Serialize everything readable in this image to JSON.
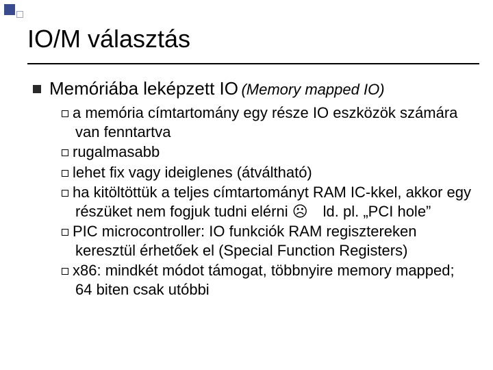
{
  "decor": {
    "big_color": "#3a4a8f",
    "small_border": "#9aa0c0",
    "rule_color": "#000000"
  },
  "title": "IO/M választás",
  "bullet1_color": "#2a2a2a",
  "lvl1": {
    "text": "Memóriába leképzett IO",
    "sub": "(Memory mapped IO)"
  },
  "items": [
    "a memória címtartomány egy része IO eszközök számára van fenntartva",
    "rugalmasabb",
    "lehet fix vagy ideiglenes (átváltható)",
    "ha kitöltöttük a teljes címtartományt RAM IC-kkel, akkor egy részüket nem fogjuk tudni elérni ☹ ld. pl. „PCI hole”",
    "PIC microcontroller: IO funkciók RAM regisztereken keresztül érhetőek el (Special Function Registers)",
    "x86: mindkét módot támogat, többnyire memory mapped; 64 biten csak utóbbi"
  ],
  "fonts": {
    "title_pt": 36,
    "lvl1_pt": 26,
    "lvl2_pt": 22
  }
}
